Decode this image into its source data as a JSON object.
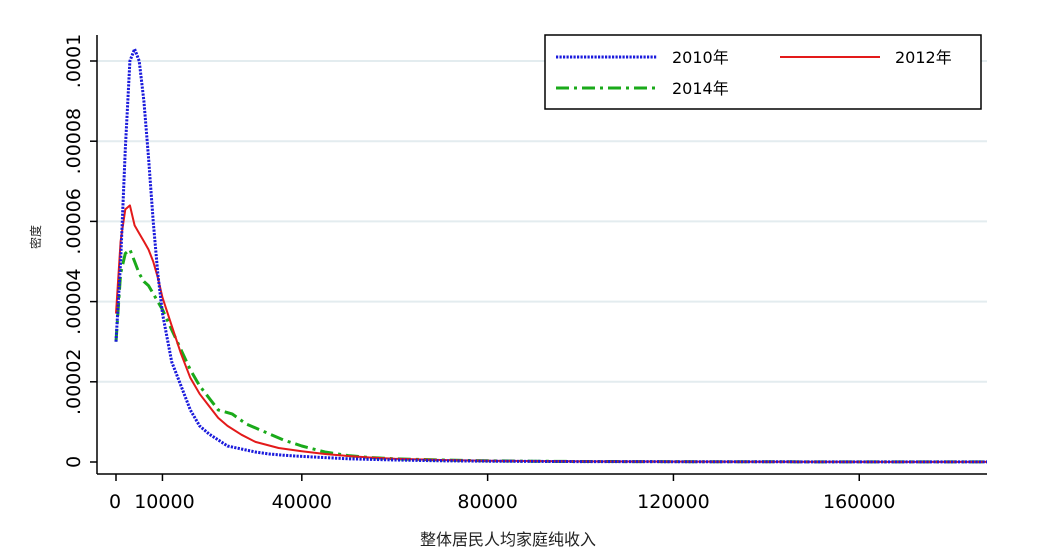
{
  "chart_data": {
    "type": "line",
    "xlabel": "整体居民人均家庭纯收入",
    "ylabel": "密度",
    "xlim": [
      -2500,
      187500
    ],
    "ylim": [
      -3e-06,
      0.000104
    ],
    "x_ticks": [
      0,
      10000,
      40000,
      80000,
      120000,
      160000
    ],
    "x_tick_labels": [
      "0",
      "10000",
      "40000",
      "80000",
      "120000",
      "160000"
    ],
    "y_ticks": [
      0,
      2e-05,
      4e-05,
      6e-05,
      8e-05,
      0.0001
    ],
    "y_tick_labels": [
      "0",
      ".00002",
      ".00004",
      ".00006",
      ".00008",
      ".0001"
    ],
    "grid": "horizontal",
    "legend_position": "top-right",
    "series": [
      {
        "name": "2010年",
        "color": "#1a1adc",
        "style": "dotted",
        "x": [
          0,
          1000,
          2000,
          3000,
          4000,
          5000,
          6000,
          7000,
          8000,
          9000,
          10000,
          12000,
          14000,
          16000,
          18000,
          20000,
          22000,
          24000,
          26000,
          28000,
          30000,
          33000,
          36000,
          40000,
          45000,
          50000,
          60000,
          70000,
          80000,
          100000,
          140000,
          187500
        ],
        "y": [
          3e-05,
          5e-05,
          7.8e-05,
          0.0001,
          0.000103,
          0.0001,
          9e-05,
          7.6e-05,
          6e-05,
          4.7e-05,
          3.7e-05,
          2.5e-05,
          1.9e-05,
          1.3e-05,
          9e-06,
          7e-06,
          5.5e-06,
          4e-06,
          3.5e-06,
          3e-06,
          2.5e-06,
          2e-06,
          1.7e-06,
          1.4e-06,
          1.1e-06,
          8e-07,
          5e-07,
          3e-07,
          2e-07,
          1e-07,
          5e-08,
          3e-08
        ]
      },
      {
        "name": "2012年",
        "color": "#e31a1a",
        "style": "solid",
        "x": [
          0,
          1000,
          2000,
          3000,
          4000,
          5000,
          6000,
          7000,
          8000,
          9000,
          10000,
          12000,
          14000,
          16000,
          18000,
          20000,
          22000,
          24000,
          27000,
          30000,
          35000,
          40000,
          45000,
          50000,
          55000,
          60000,
          70000,
          80000,
          100000,
          140000,
          187500
        ],
        "y": [
          3.7e-05,
          5.5e-05,
          6.3e-05,
          6.4e-05,
          5.9e-05,
          5.7e-05,
          5.5e-05,
          5.3e-05,
          5e-05,
          4.6e-05,
          4.1e-05,
          3.4e-05,
          2.7e-05,
          2.1e-05,
          1.7e-05,
          1.4e-05,
          1.1e-05,
          9e-06,
          6.8e-06,
          5e-06,
          3.5e-06,
          2.7e-06,
          2e-06,
          1.5e-06,
          1.1e-06,
          8e-07,
          5e-07,
          3e-07,
          1.5e-07,
          6e-08,
          3e-08
        ]
      },
      {
        "name": "2014年",
        "color": "#1aaa1a",
        "style": "dashdot",
        "x": [
          0,
          1000,
          2000,
          3000,
          4000,
          5000,
          6000,
          7000,
          8000,
          9000,
          10000,
          12000,
          14000,
          16000,
          18000,
          20000,
          22000,
          25000,
          28000,
          32000,
          36000,
          40000,
          45000,
          50000,
          55000,
          60000,
          70000,
          80000,
          90000,
          100000,
          140000,
          187500
        ],
        "y": [
          3e-05,
          4.7e-05,
          5.2e-05,
          5.3e-05,
          5e-05,
          4.7e-05,
          4.5e-05,
          4.4e-05,
          4.2e-05,
          4e-05,
          3.8e-05,
          3.3e-05,
          2.8e-05,
          2.3e-05,
          1.9e-05,
          1.6e-05,
          1.3e-05,
          1.2e-05,
          9.5e-06,
          7.5e-06,
          5.5e-06,
          4e-06,
          2.5e-06,
          1.6e-06,
          1.1e-06,
          8e-07,
          5e-07,
          3e-07,
          2e-07,
          1.2e-07,
          5e-08,
          3e-08
        ]
      }
    ]
  }
}
